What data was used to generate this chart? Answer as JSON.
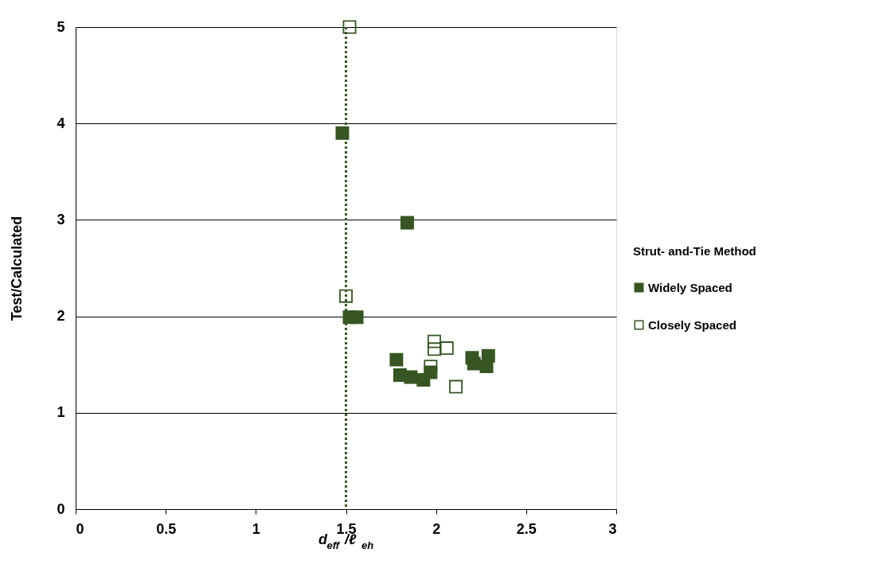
{
  "chart_data": {
    "type": "scatter",
    "xlabel": "d$_{eff}$/ℓ$_{eh}$",
    "ylabel": "Test/Calculated",
    "legend_title": "Strut- and-Tie Method",
    "series": [
      {
        "name": "Widely Spaced",
        "color": "#375623",
        "x": [
          1.48,
          1.84,
          1.52,
          1.56,
          1.78,
          1.8,
          1.86,
          1.93,
          1.97,
          2.2,
          2.21,
          2.28,
          2.29
        ],
        "values": [
          3.9,
          2.97,
          1.99,
          1.99,
          1.55,
          1.39,
          1.37,
          1.34,
          1.42,
          1.57,
          1.51,
          1.48,
          1.59
        ]
      },
      {
        "name": "Closely Spaced",
        "color": "#375623",
        "x": [
          1.52,
          1.5,
          1.99,
          1.99,
          2.06,
          1.97,
          2.11
        ],
        "values": [
          5.0,
          2.21,
          1.74,
          1.66,
          1.67,
          1.48,
          1.27
        ]
      }
    ],
    "xlim": [
      0,
      3
    ],
    "xticks": [
      0,
      0.5,
      1,
      1.5,
      2,
      2.5,
      3
    ],
    "ylim": [
      0,
      5
    ],
    "yticks": [
      0,
      1,
      2,
      3,
      4,
      5
    ],
    "ref_lines": [
      {
        "axis": "x",
        "value": 1.5,
        "color": "#375623",
        "line_style": "dotted"
      }
    ],
    "grid": "y",
    "legend": "right",
    "marker": "square"
  }
}
